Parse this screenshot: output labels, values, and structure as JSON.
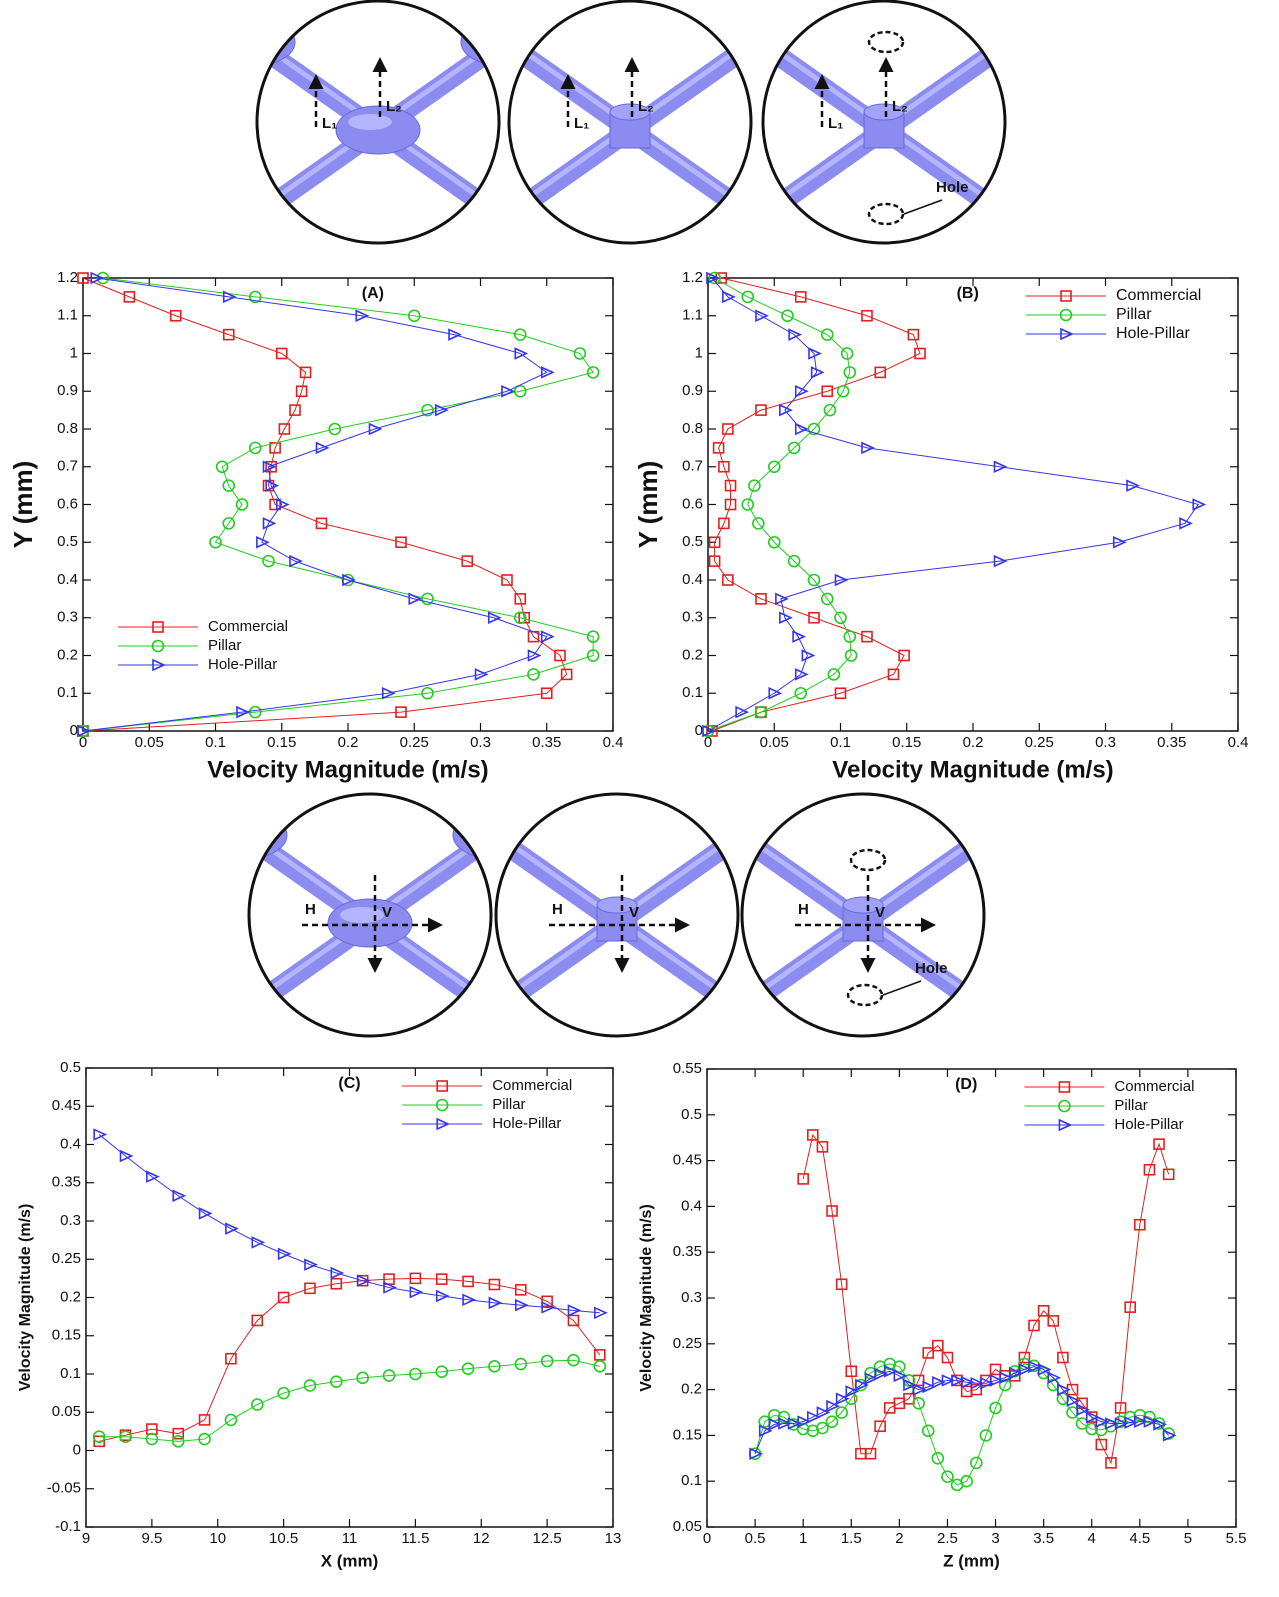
{
  "diagrams": [
    {
      "labels": [
        "L₁",
        "L₂"
      ]
    },
    {
      "labels": [
        "L₁",
        "L₂"
      ]
    },
    {
      "labels": [
        "L₁",
        "L₂",
        "Hole"
      ]
    },
    {
      "labels": [
        "H",
        "V"
      ]
    },
    {
      "labels": [
        "H",
        "V"
      ]
    },
    {
      "labels": [
        "H",
        "V",
        "Hole"
      ]
    }
  ],
  "chart_data": [
    {
      "type": "line",
      "label": "(A)",
      "xlabel": "Velocity Magnitude (m/s)",
      "ylabel": "Y (mm)",
      "legend": "lower left",
      "y": [
        0,
        0.05,
        0.1,
        0.15,
        0.2,
        0.25,
        0.3,
        0.35,
        0.4,
        0.45,
        0.5,
        0.55,
        0.6,
        0.65,
        0.7,
        0.75,
        0.8,
        0.85,
        0.9,
        0.95,
        1,
        1.05,
        1.1,
        1.15,
        1.2
      ],
      "series": [
        {
          "name": "Commercial",
          "color": "#e02020",
          "marker": "square",
          "values": [
            0,
            0.24,
            0.35,
            0.365,
            0.36,
            0.34,
            0.333,
            0.33,
            0.32,
            0.29,
            0.24,
            0.18,
            0.145,
            0.14,
            0.142,
            0.145,
            0.152,
            0.16,
            0.165,
            0.168,
            0.15,
            0.11,
            0.07,
            0.035,
            0
          ]
        },
        {
          "name": "Pillar",
          "color": "#22cc22",
          "marker": "circle",
          "values": [
            0,
            0.13,
            0.26,
            0.34,
            0.385,
            0.385,
            0.33,
            0.26,
            0.2,
            0.14,
            0.1,
            0.11,
            0.12,
            0.11,
            0.105,
            0.13,
            0.19,
            0.26,
            0.33,
            0.385,
            0.375,
            0.33,
            0.25,
            0.13,
            0.015
          ]
        },
        {
          "name": "Hole-Pillar",
          "color": "#3535ee",
          "marker": "triangle-right",
          "values": [
            0,
            0.12,
            0.23,
            0.3,
            0.34,
            0.35,
            0.31,
            0.25,
            0.2,
            0.16,
            0.135,
            0.14,
            0.15,
            0.142,
            0.14,
            0.18,
            0.22,
            0.27,
            0.32,
            0.35,
            0.33,
            0.28,
            0.21,
            0.11,
            0.01
          ]
        }
      ],
      "xlim": [
        0,
        0.4
      ],
      "xticks": [
        0,
        0.05,
        0.1,
        0.15,
        0.2,
        0.25,
        0.3,
        0.35,
        0.4
      ],
      "ylim": [
        0,
        1.2
      ],
      "yticks": [
        0,
        0.1,
        0.2,
        0.3,
        0.4,
        0.5,
        0.6,
        0.7,
        0.8,
        0.9,
        1,
        1.1,
        1.2
      ]
    },
    {
      "type": "line",
      "label": "(B)",
      "xlabel": "Velocity Magnitude (m/s)",
      "ylabel": "Y (mm)",
      "legend": "upper right",
      "y": [
        0,
        0.05,
        0.1,
        0.15,
        0.2,
        0.25,
        0.3,
        0.35,
        0.4,
        0.45,
        0.5,
        0.55,
        0.6,
        0.65,
        0.7,
        0.75,
        0.8,
        0.85,
        0.9,
        0.95,
        1,
        1.05,
        1.1,
        1.15,
        1.2
      ],
      "series": [
        {
          "name": "Commercial",
          "color": "#e02020",
          "marker": "square",
          "values": [
            0.003,
            0.04,
            0.1,
            0.14,
            0.148,
            0.12,
            0.08,
            0.04,
            0.015,
            0.005,
            0.005,
            0.012,
            0.017,
            0.017,
            0.012,
            0.008,
            0.015,
            0.04,
            0.09,
            0.13,
            0.16,
            0.155,
            0.12,
            0.07,
            0.01
          ]
        },
        {
          "name": "Pillar",
          "color": "#22cc22",
          "marker": "circle",
          "values": [
            0,
            0.04,
            0.07,
            0.095,
            0.108,
            0.107,
            0.1,
            0.09,
            0.08,
            0.065,
            0.05,
            0.038,
            0.03,
            0.035,
            0.05,
            0.065,
            0.08,
            0.092,
            0.102,
            0.107,
            0.105,
            0.09,
            0.06,
            0.03,
            0.005
          ]
        },
        {
          "name": "Hole-Pillar",
          "color": "#3535ee",
          "marker": "triangle-right",
          "values": [
            0,
            0.025,
            0.05,
            0.07,
            0.075,
            0.068,
            0.058,
            0.055,
            0.1,
            0.22,
            0.31,
            0.36,
            0.37,
            0.32,
            0.22,
            0.12,
            0.07,
            0.058,
            0.07,
            0.082,
            0.08,
            0.065,
            0.04,
            0.015,
            0.003
          ]
        }
      ],
      "xlim": [
        0,
        0.4
      ],
      "xticks": [
        0,
        0.05,
        0.1,
        0.15,
        0.2,
        0.25,
        0.3,
        0.35,
        0.4
      ],
      "ylim": [
        0,
        1.2
      ],
      "yticks": [
        0,
        0.1,
        0.2,
        0.3,
        0.4,
        0.5,
        0.6,
        0.7,
        0.8,
        0.9,
        1,
        1.1,
        1.2
      ]
    },
    {
      "type": "line",
      "label": "(C)",
      "xlabel": "X (mm)",
      "ylabel": "Velocity Magnitude (m/s)",
      "legend": "upper right",
      "x": [
        9.1,
        9.3,
        9.5,
        9.7,
        9.9,
        10.1,
        10.3,
        10.5,
        10.7,
        10.9,
        11.1,
        11.3,
        11.5,
        11.7,
        11.9,
        12.1,
        12.3,
        12.5,
        12.7,
        12.9
      ],
      "series": [
        {
          "name": "Commercial",
          "color": "#e02020",
          "marker": "square",
          "values": [
            0.012,
            0.02,
            0.028,
            0.022,
            0.04,
            0.12,
            0.17,
            0.2,
            0.212,
            0.218,
            0.222,
            0.224,
            0.225,
            0.224,
            0.221,
            0.217,
            0.21,
            0.195,
            0.17,
            0.125
          ]
        },
        {
          "name": "Pillar",
          "color": "#22cc22",
          "marker": "circle",
          "values": [
            0.018,
            0.018,
            0.015,
            0.012,
            0.015,
            0.04,
            0.06,
            0.075,
            0.085,
            0.09,
            0.095,
            0.098,
            0.1,
            0.103,
            0.107,
            0.11,
            0.113,
            0.117,
            0.118,
            0.11
          ]
        },
        {
          "name": "Hole-Pillar",
          "color": "#3535ee",
          "marker": "triangle-right",
          "values": [
            0.413,
            0.385,
            0.358,
            0.333,
            0.31,
            0.29,
            0.272,
            0.257,
            0.243,
            0.232,
            0.222,
            0.213,
            0.207,
            0.202,
            0.197,
            0.193,
            0.19,
            0.187,
            0.183,
            0.18
          ]
        }
      ],
      "xlim": [
        9,
        13
      ],
      "xticks": [
        9,
        9.5,
        10,
        10.5,
        11,
        11.5,
        12,
        12.5,
        13
      ],
      "ylim": [
        -0.1,
        0.5
      ],
      "yticks": [
        -0.1,
        -0.05,
        0,
        0.05,
        0.1,
        0.15,
        0.2,
        0.25,
        0.3,
        0.35,
        0.4,
        0.45,
        0.5
      ]
    },
    {
      "type": "line",
      "label": "(D)",
      "xlabel": "Z (mm)",
      "ylabel": "Velocity Magnitude (m/s)",
      "legend": "upper right",
      "x": [
        0.5,
        0.6,
        0.7,
        0.8,
        0.9,
        1,
        1.1,
        1.2,
        1.3,
        1.4,
        1.5,
        1.6,
        1.7,
        1.8,
        1.9,
        2,
        2.1,
        2.2,
        2.3,
        2.4,
        2.5,
        2.6,
        2.7,
        2.8,
        2.9,
        3,
        3.1,
        3.2,
        3.3,
        3.4,
        3.5,
        3.6,
        3.7,
        3.8,
        3.9,
        4,
        4.1,
        4.2,
        4.3,
        4.4,
        4.5,
        4.6,
        4.7,
        4.8
      ],
      "series": [
        {
          "name": "Commercial",
          "color": "#e02020",
          "marker": "square",
          "values": [
            null,
            null,
            null,
            null,
            null,
            0.43,
            0.478,
            0.465,
            0.395,
            0.315,
            0.22,
            0.13,
            0.13,
            0.16,
            0.18,
            0.185,
            0.19,
            0.21,
            0.24,
            0.248,
            0.235,
            0.21,
            0.198,
            0.2,
            0.21,
            0.222,
            0.215,
            0.215,
            0.235,
            0.27,
            0.286,
            0.275,
            0.235,
            0.2,
            0.185,
            0.17,
            0.14,
            0.12,
            0.18,
            0.29,
            0.38,
            0.44,
            0.468,
            0.435
          ]
        },
        {
          "name": "Pillar",
          "color": "#22cc22",
          "marker": "circle",
          "values": [
            0.13,
            0.165,
            0.172,
            0.17,
            0.162,
            0.157,
            0.155,
            0.158,
            0.165,
            0.175,
            0.19,
            0.205,
            0.218,
            0.225,
            0.228,
            0.225,
            0.21,
            0.185,
            0.155,
            0.125,
            0.105,
            0.096,
            0.1,
            0.12,
            0.15,
            0.18,
            0.205,
            0.22,
            0.228,
            0.226,
            0.218,
            0.205,
            0.19,
            0.175,
            0.163,
            0.157,
            0.156,
            0.16,
            0.165,
            0.17,
            0.172,
            0.17,
            0.163,
            0.152
          ]
        },
        {
          "name": "Hole-Pillar",
          "color": "#3535ee",
          "marker": "triangle-right",
          "values": [
            0.13,
            0.155,
            0.162,
            0.163,
            0.163,
            0.165,
            0.17,
            0.175,
            0.182,
            0.19,
            0.198,
            0.205,
            0.212,
            0.217,
            0.22,
            0.215,
            0.205,
            0.2,
            0.203,
            0.208,
            0.21,
            0.21,
            0.208,
            0.207,
            0.207,
            0.21,
            0.213,
            0.218,
            0.222,
            0.225,
            0.222,
            0.213,
            0.2,
            0.188,
            0.178,
            0.17,
            0.165,
            0.163,
            0.163,
            0.164,
            0.165,
            0.165,
            0.162,
            0.15
          ]
        }
      ],
      "xlim": [
        0,
        5.5
      ],
      "xticks": [
        0,
        0.5,
        1,
        1.5,
        2,
        2.5,
        3,
        3.5,
        4,
        4.5,
        5,
        5.5
      ],
      "ylim": [
        0.05,
        0.55
      ],
      "yticks": [
        0.05,
        0.1,
        0.15,
        0.2,
        0.25,
        0.3,
        0.35,
        0.4,
        0.45,
        0.5,
        0.55
      ]
    }
  ]
}
